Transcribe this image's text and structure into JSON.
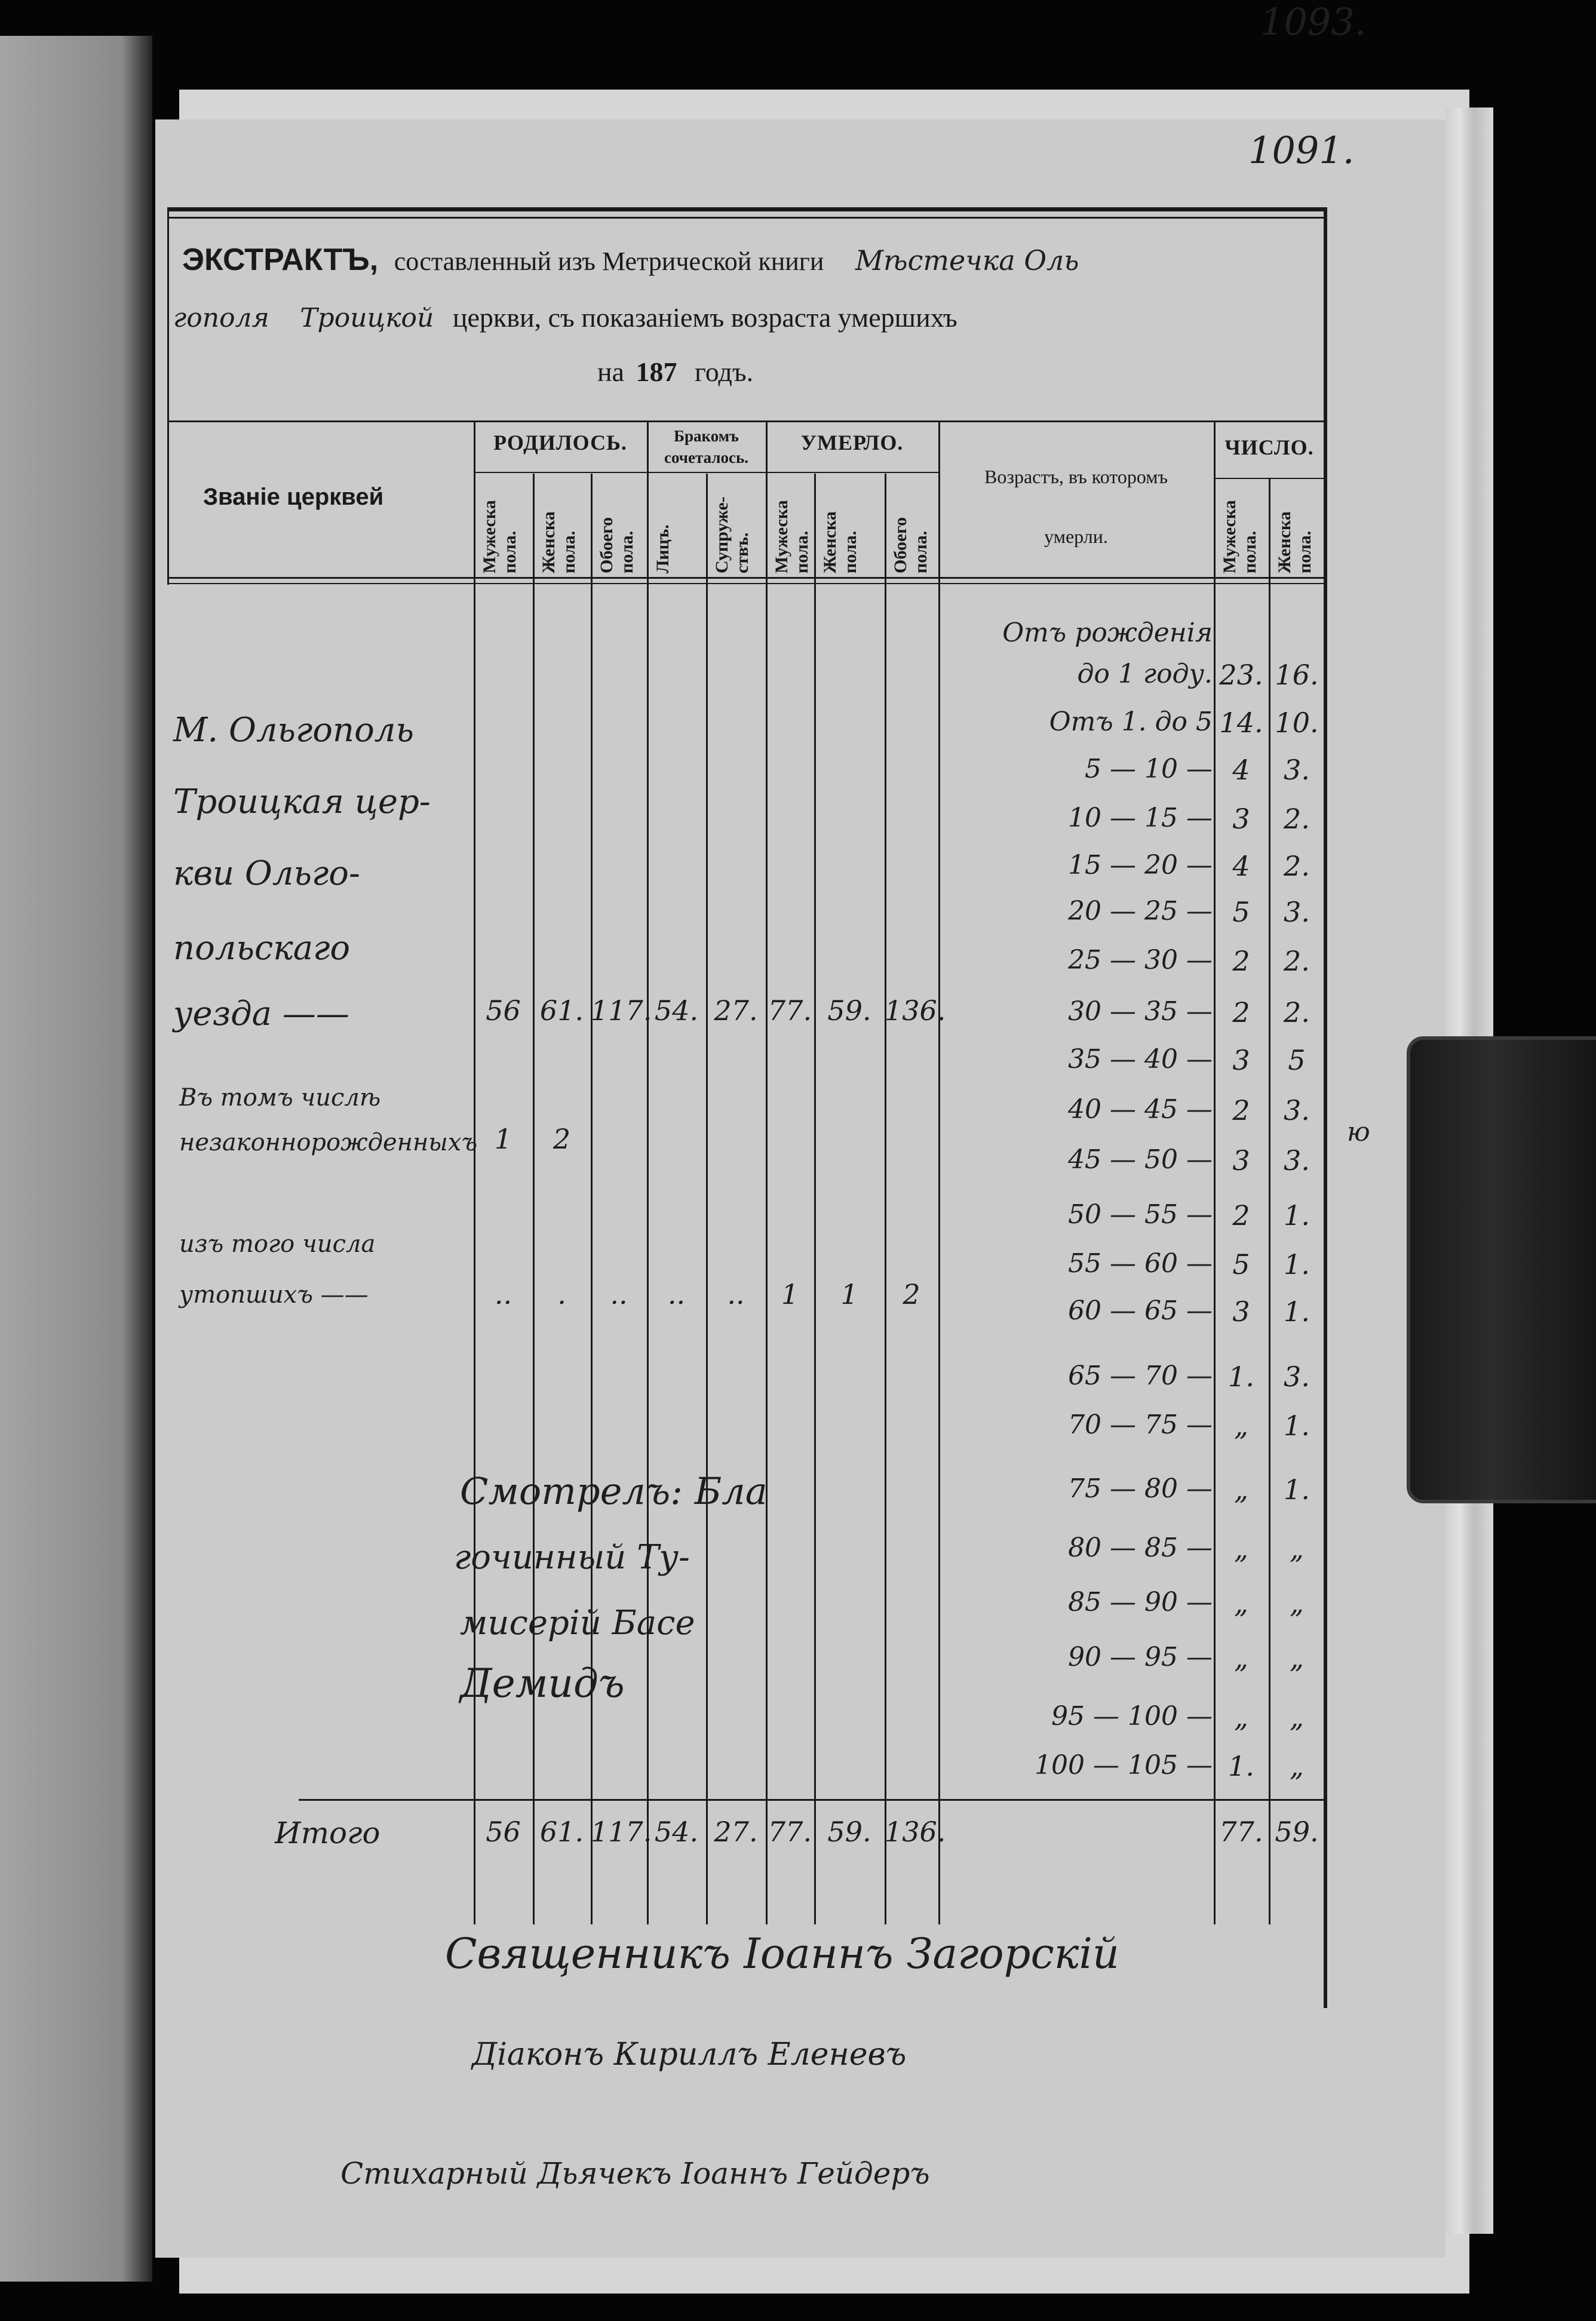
{
  "page_numbers": [
    "1093.",
    "1091."
  ],
  "title": {
    "bold": "ЭКСТРАКТЪ,",
    "printed1": "составленный изъ Метрической книги",
    "hand1": "Мѣстечка Оль",
    "hand2": "гополя",
    "hand3": "Троицкой",
    "printed2": "церкви, съ показаніемъ возраста умершихъ",
    "year_prefix": "на",
    "year": "187",
    "year_suffix": "годъ."
  },
  "headers": {
    "church": "Званіе церквей",
    "born": "РОДИЛОСЬ.",
    "married": "Бракомъ сочеталось.",
    "died": "УМЕРЛО.",
    "age": "Возрастъ, въ которомъ",
    "age2": "умерли.",
    "count": "ЧИСЛО.",
    "born_cols": [
      "Мужеска пола.",
      "Женска пола.",
      "Обоего пола."
    ],
    "married_cols": [
      "Лицъ.",
      "Супруже-ствъ."
    ],
    "died_cols": [
      "Мужеска пола.",
      "Женска пола.",
      "Обоего пола."
    ],
    "count_cols": [
      "Мужеска пола.",
      "Женска пола."
    ]
  },
  "church_lines": [
    "М. Ольгополь",
    "Троицкая цер-",
    "кви Ольго-",
    "польскаго",
    "уезда ——"
  ],
  "main_row": [
    "56",
    "61.",
    "117.",
    "54.",
    "27.",
    "77.",
    "59.",
    "136."
  ],
  "illegitimate": {
    "lines": [
      "Въ томъ числѣ",
      "незаконнорожденныхъ"
    ],
    "values": [
      "1",
      "2",
      "",
      "",
      "",
      "",
      "",
      ""
    ]
  },
  "drowned": {
    "lines": [
      "изъ того числа",
      "утопшихъ ——"
    ],
    "values": [
      "..",
      ".",
      "..",
      "..",
      "..",
      "1",
      "1",
      "2"
    ]
  },
  "ages": [
    {
      "range": "Отъ рожденія",
      "range2": "до 1 году.",
      "male": "23.",
      "female": "16."
    },
    {
      "range": "Отъ 1. до 5",
      "male": "14.",
      "female": "10."
    },
    {
      "range": "5 — 10 —",
      "male": "4",
      "female": "3."
    },
    {
      "range": "10 — 15 —",
      "male": "3",
      "female": "2."
    },
    {
      "range": "15 — 20 —",
      "male": "4",
      "female": "2."
    },
    {
      "range": "20 — 25 —",
      "male": "5",
      "female": "3."
    },
    {
      "range": "25 — 30 —",
      "male": "2",
      "female": "2."
    },
    {
      "range": "30 — 35 —",
      "male": "2",
      "female": "2."
    },
    {
      "range": "35 — 40 —",
      "male": "3",
      "female": "5"
    },
    {
      "range": "40 — 45 —",
      "male": "2",
      "female": "3."
    },
    {
      "range": "45 — 50 —",
      "male": "3",
      "female": "3."
    },
    {
      "range": "50 — 55 —",
      "male": "2",
      "female": "1."
    },
    {
      "range": "55 — 60 —",
      "male": "5",
      "female": "1."
    },
    {
      "range": "60 — 65 —",
      "male": "3",
      "female": "1."
    },
    {
      "range": "65 — 70 —",
      "male": "1.",
      "female": "3."
    },
    {
      "range": "70 — 75 —",
      "male": "„",
      "female": "1."
    },
    {
      "range": "75 — 80 —",
      "male": "„",
      "female": "1."
    },
    {
      "range": "80 — 85 —",
      "male": "„",
      "female": "„"
    },
    {
      "range": "85 — 90 —",
      "male": "„",
      "female": "„"
    },
    {
      "range": "90 — 95 —",
      "male": "„",
      "female": "„"
    },
    {
      "range": "95 — 100 —",
      "male": "„",
      "female": "„"
    },
    {
      "range": "100 — 105 —",
      "male": "1.",
      "female": "„"
    }
  ],
  "totals": {
    "label": "Итого",
    "values": [
      "56",
      "61.",
      "117.",
      "54.",
      "27.",
      "77.",
      "59.",
      "136."
    ],
    "male": "77.",
    "female": "59."
  },
  "inspection": [
    "Смотрелъ: Бла",
    "гочинный Ту-",
    "мисерій Басе",
    "Демидъ"
  ],
  "signatures": [
    "Священникъ Іоаннъ Загорскій",
    "Діаконъ Кириллъ Еленевъ",
    "Стихарный Дьячекъ Іоаннъ Гейдеръ"
  ],
  "margin_mark": "ю",
  "colors": {
    "paper": "#cbcbcb",
    "ink": "#1e1e1e",
    "background": "#050505"
  }
}
